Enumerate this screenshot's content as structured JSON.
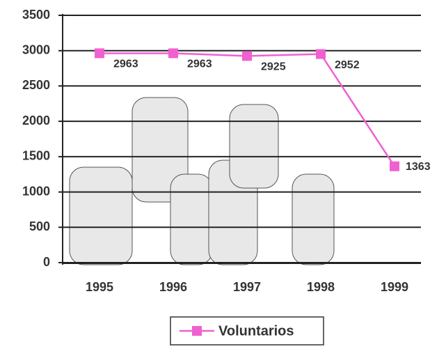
{
  "chart_data": {
    "type": "line",
    "categories": [
      "1995",
      "1996",
      "1997",
      "1998",
      "1999"
    ],
    "series": [
      {
        "name": "Voluntarios",
        "color": "#f060d0",
        "values": [
          2963,
          2963,
          2925,
          2952,
          1363
        ]
      }
    ],
    "ylim": [
      0,
      3500
    ],
    "yticks": [
      0,
      500,
      1000,
      1500,
      2000,
      2500,
      3000,
      3500
    ],
    "grid": true,
    "legend": "bottom"
  }
}
